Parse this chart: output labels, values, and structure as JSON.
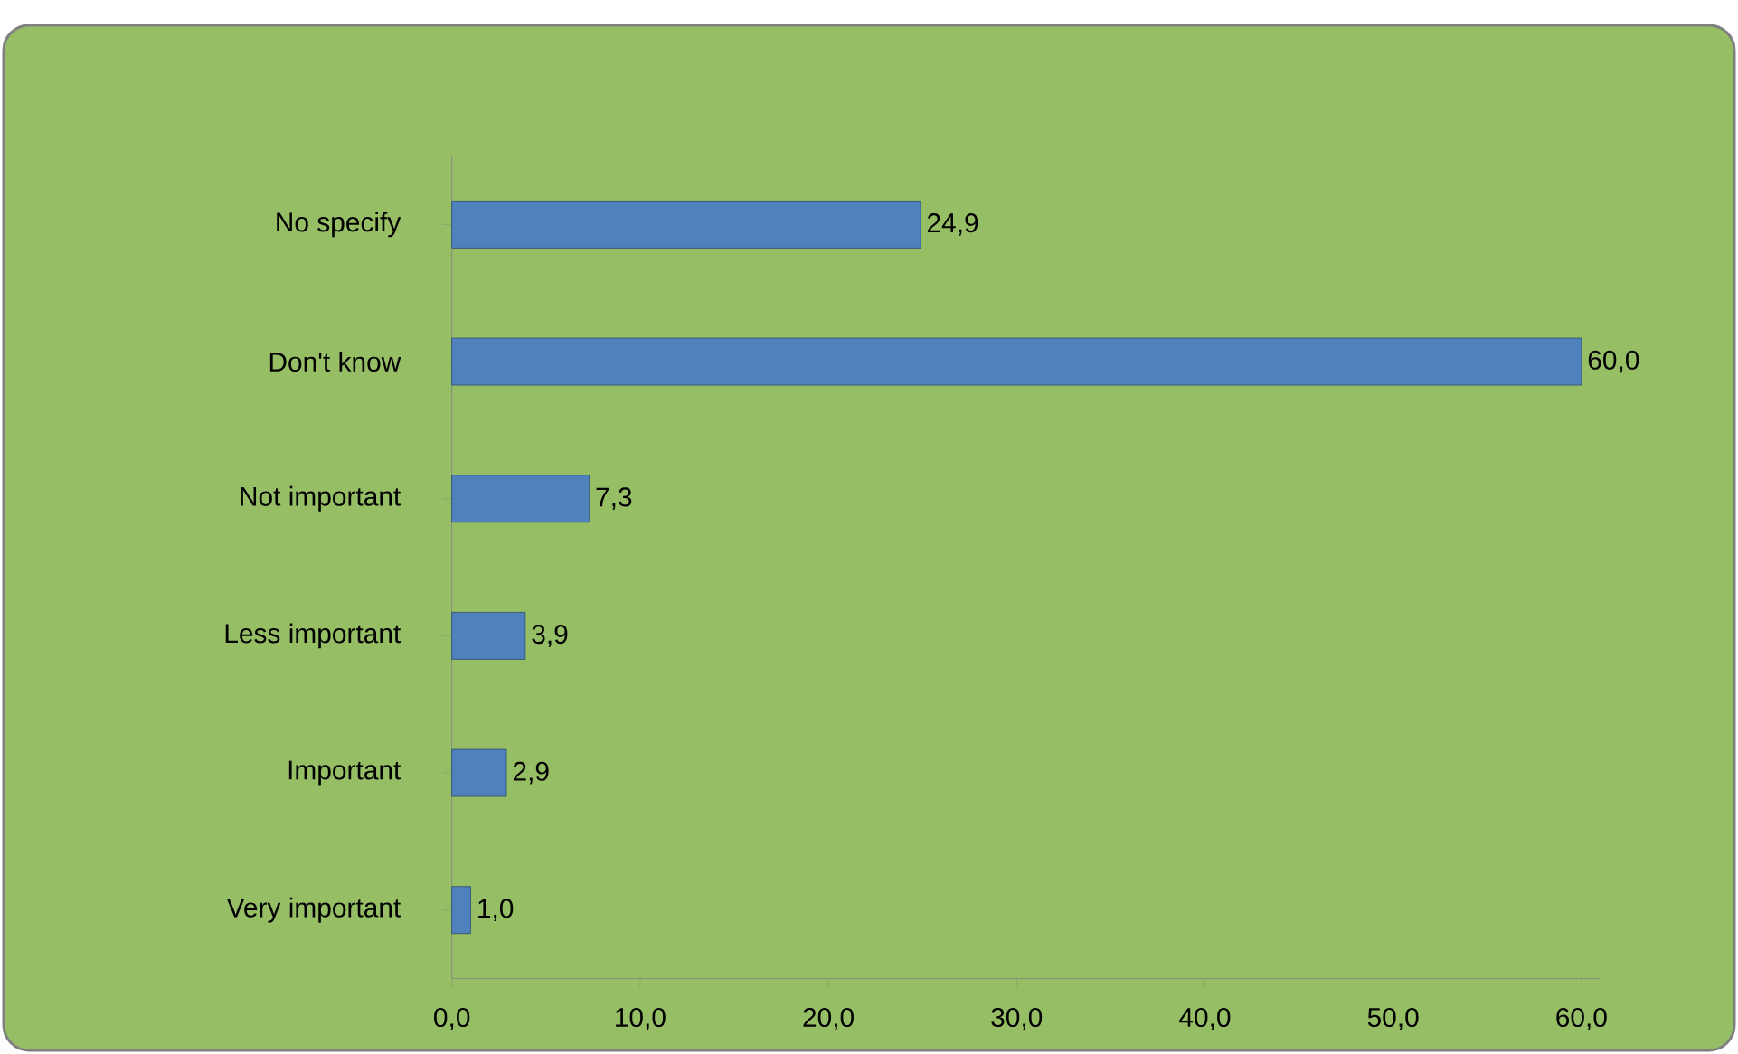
{
  "chart_data": {
    "type": "bar",
    "orientation": "horizontal",
    "categories": [
      "No specify",
      "Don't know",
      "Not important",
      "Less important",
      "Important",
      "Very important"
    ],
    "values": [
      24.9,
      60.0,
      7.3,
      3.9,
      2.9,
      1.0
    ],
    "value_labels": [
      "24,9",
      "60,0",
      "7,3",
      "3,9",
      "2,9",
      "1,0"
    ],
    "color": "#4f81bd",
    "xlim": [
      0,
      61
    ],
    "xticks": [
      {
        "value": 0,
        "label": "0,0"
      },
      {
        "value": 10,
        "label": "10,0"
      },
      {
        "value": 20,
        "label": "20,0"
      },
      {
        "value": 30,
        "label": "30,0"
      },
      {
        "value": 40,
        "label": "40,0"
      },
      {
        "value": 50,
        "label": "50,0"
      },
      {
        "value": 60,
        "label": "60,0"
      }
    ]
  }
}
